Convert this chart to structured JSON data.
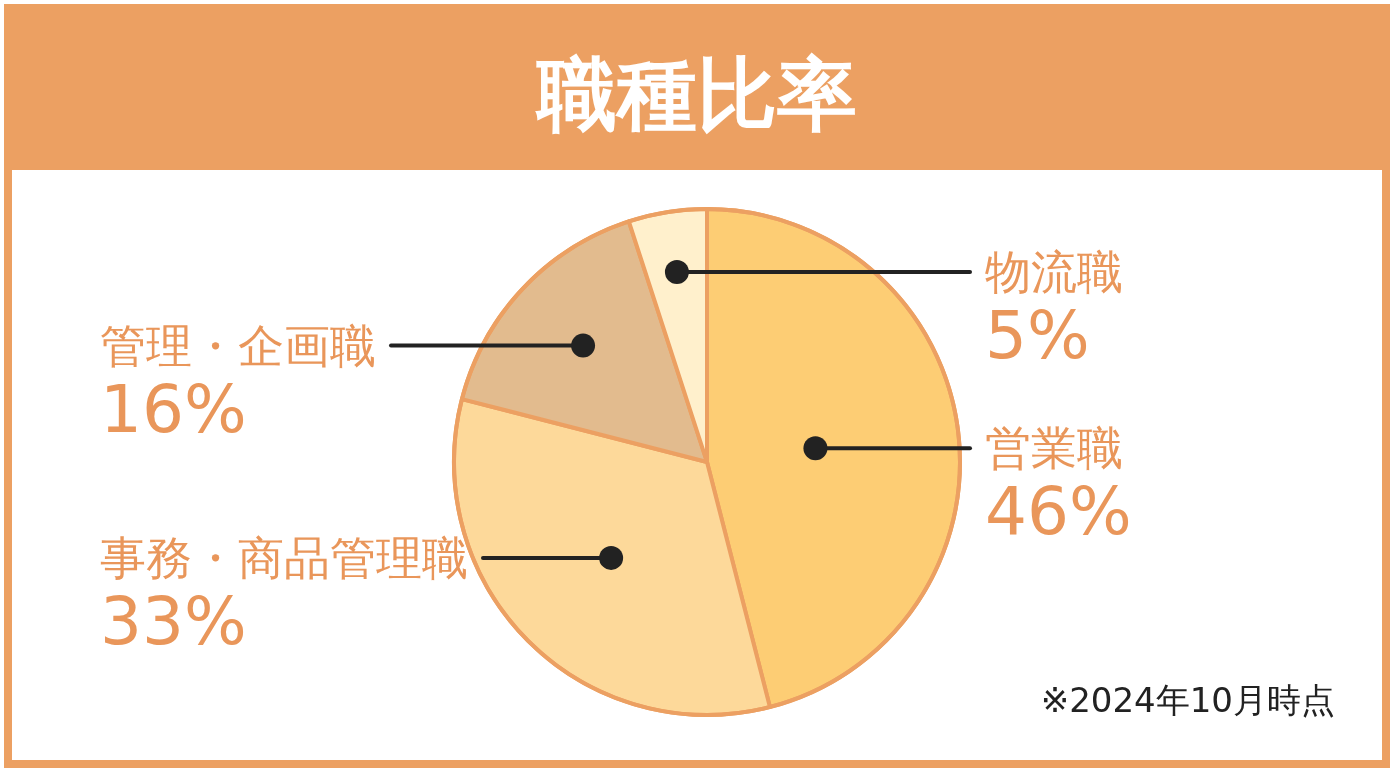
{
  "chart_data": {
    "type": "pie",
    "title": "職種比率",
    "categories": [
      "営業職",
      "事務・商品管理職",
      "管理・企画職",
      "物流職"
    ],
    "values": [
      46,
      33,
      16,
      5
    ],
    "value_labels": [
      "46%",
      "33%",
      "16%",
      "5%"
    ],
    "colors": [
      "#fdcd74",
      "#fdd99a",
      "#e2bb8e",
      "#fff0cc"
    ],
    "annotations": [
      "※2024年10月時点"
    ]
  }
}
